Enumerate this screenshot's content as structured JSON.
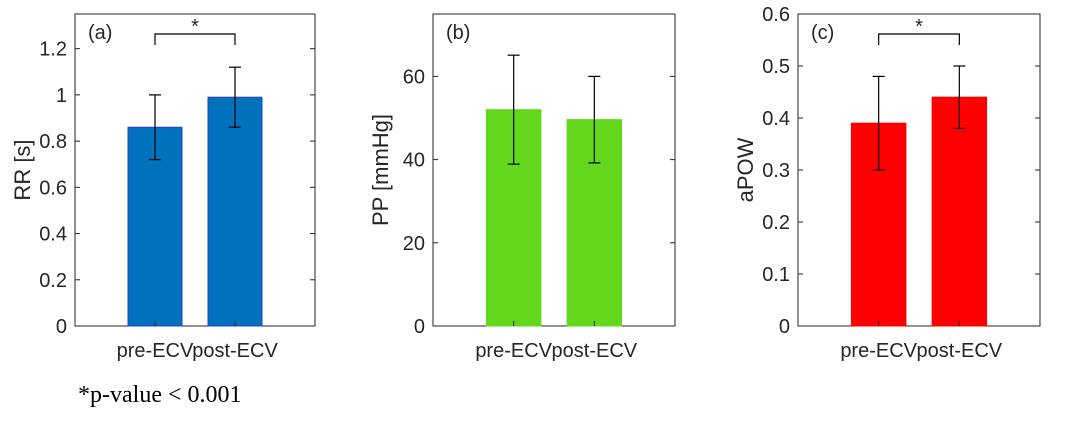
{
  "footnote": "*p-value < 0.001",
  "chart_data": [
    {
      "type": "bar",
      "panel_label": "(a)",
      "categories": [
        "pre-ECV",
        "post-ECV"
      ],
      "values": [
        0.86,
        0.99
      ],
      "errors": [
        0.14,
        0.13
      ],
      "ylabel": "RR [s]",
      "ylim": [
        0,
        1.35
      ],
      "yticks": [
        0,
        0.2,
        0.4,
        0.6,
        0.8,
        1,
        1.2
      ],
      "ytick_labels": [
        "0",
        "0.2",
        "0.4",
        "0.6",
        "0.8",
        "1",
        "1.2"
      ],
      "bar_color": "#0072BD",
      "bar_edge": "#2E3FBF",
      "significance": {
        "between": [
          0,
          1
        ],
        "label": "*"
      }
    },
    {
      "type": "bar",
      "panel_label": "(b)",
      "categories": [
        "pre-ECV",
        "post-ECV"
      ],
      "values": [
        52,
        49.6
      ],
      "errors": [
        13.1,
        10.4
      ],
      "ylabel": "PP [mmHg]",
      "ylim": [
        0,
        75
      ],
      "yticks": [
        0,
        20,
        40,
        60
      ],
      "ytick_labels": [
        "0",
        "20",
        "40",
        "60"
      ],
      "bar_color": "#62D71C",
      "bar_edge": "#62D71C",
      "significance": null
    },
    {
      "type": "bar",
      "panel_label": "(c)",
      "categories": [
        "pre-ECV",
        "post-ECV"
      ],
      "values": [
        0.39,
        0.44
      ],
      "errors": [
        0.09,
        0.06
      ],
      "ylabel": "aPOW",
      "ylim": [
        0,
        0.6
      ],
      "yticks": [
        0,
        0.1,
        0.2,
        0.3,
        0.4,
        0.5,
        0.6
      ],
      "ytick_labels": [
        "0",
        "0.1",
        "0.2",
        "0.3",
        "0.4",
        "0.5",
        "0.6"
      ],
      "bar_color": "#FF0000",
      "bar_edge": "#FF0000",
      "significance": {
        "between": [
          0,
          1
        ],
        "label": "*"
      }
    }
  ]
}
